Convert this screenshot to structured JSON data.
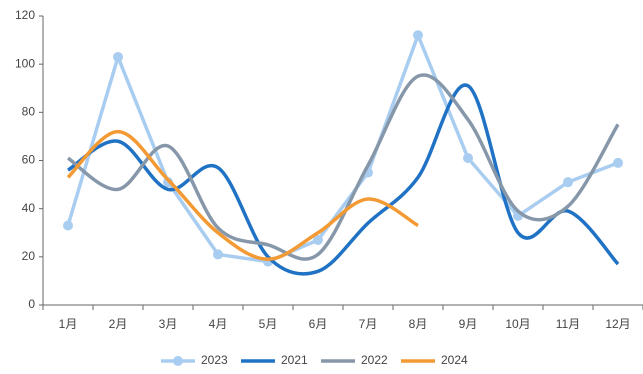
{
  "chart_data": {
    "type": "line",
    "categories": [
      "1月",
      "2月",
      "3月",
      "4月",
      "5月",
      "6月",
      "7月",
      "8月",
      "9月",
      "10月",
      "11月",
      "12月"
    ],
    "series": [
      {
        "name": "2023",
        "color": "#a9cdf0",
        "smooth": false,
        "markers": true,
        "values": [
          33,
          103,
          51,
          21,
          18,
          27,
          55,
          112,
          61,
          37,
          51,
          59
        ]
      },
      {
        "name": "2021",
        "color": "#1f72c4",
        "smooth": true,
        "markers": false,
        "values": [
          56,
          68,
          48,
          57,
          20,
          14,
          34,
          53,
          91,
          30,
          39,
          17
        ]
      },
      {
        "name": "2022",
        "color": "#8797aa",
        "smooth": true,
        "markers": false,
        "values": [
          61,
          48,
          66,
          32,
          25,
          21,
          58,
          95,
          77,
          39,
          41,
          75
        ]
      },
      {
        "name": "2024",
        "color": "#f39a34",
        "smooth": true,
        "markers": false,
        "values": [
          53,
          72,
          52,
          30,
          19,
          30,
          44,
          33,
          null,
          null,
          null,
          null
        ]
      }
    ],
    "ylim": [
      0,
      120
    ],
    "yticks": [
      0,
      20,
      40,
      60,
      80,
      100,
      120
    ],
    "grid": false
  }
}
